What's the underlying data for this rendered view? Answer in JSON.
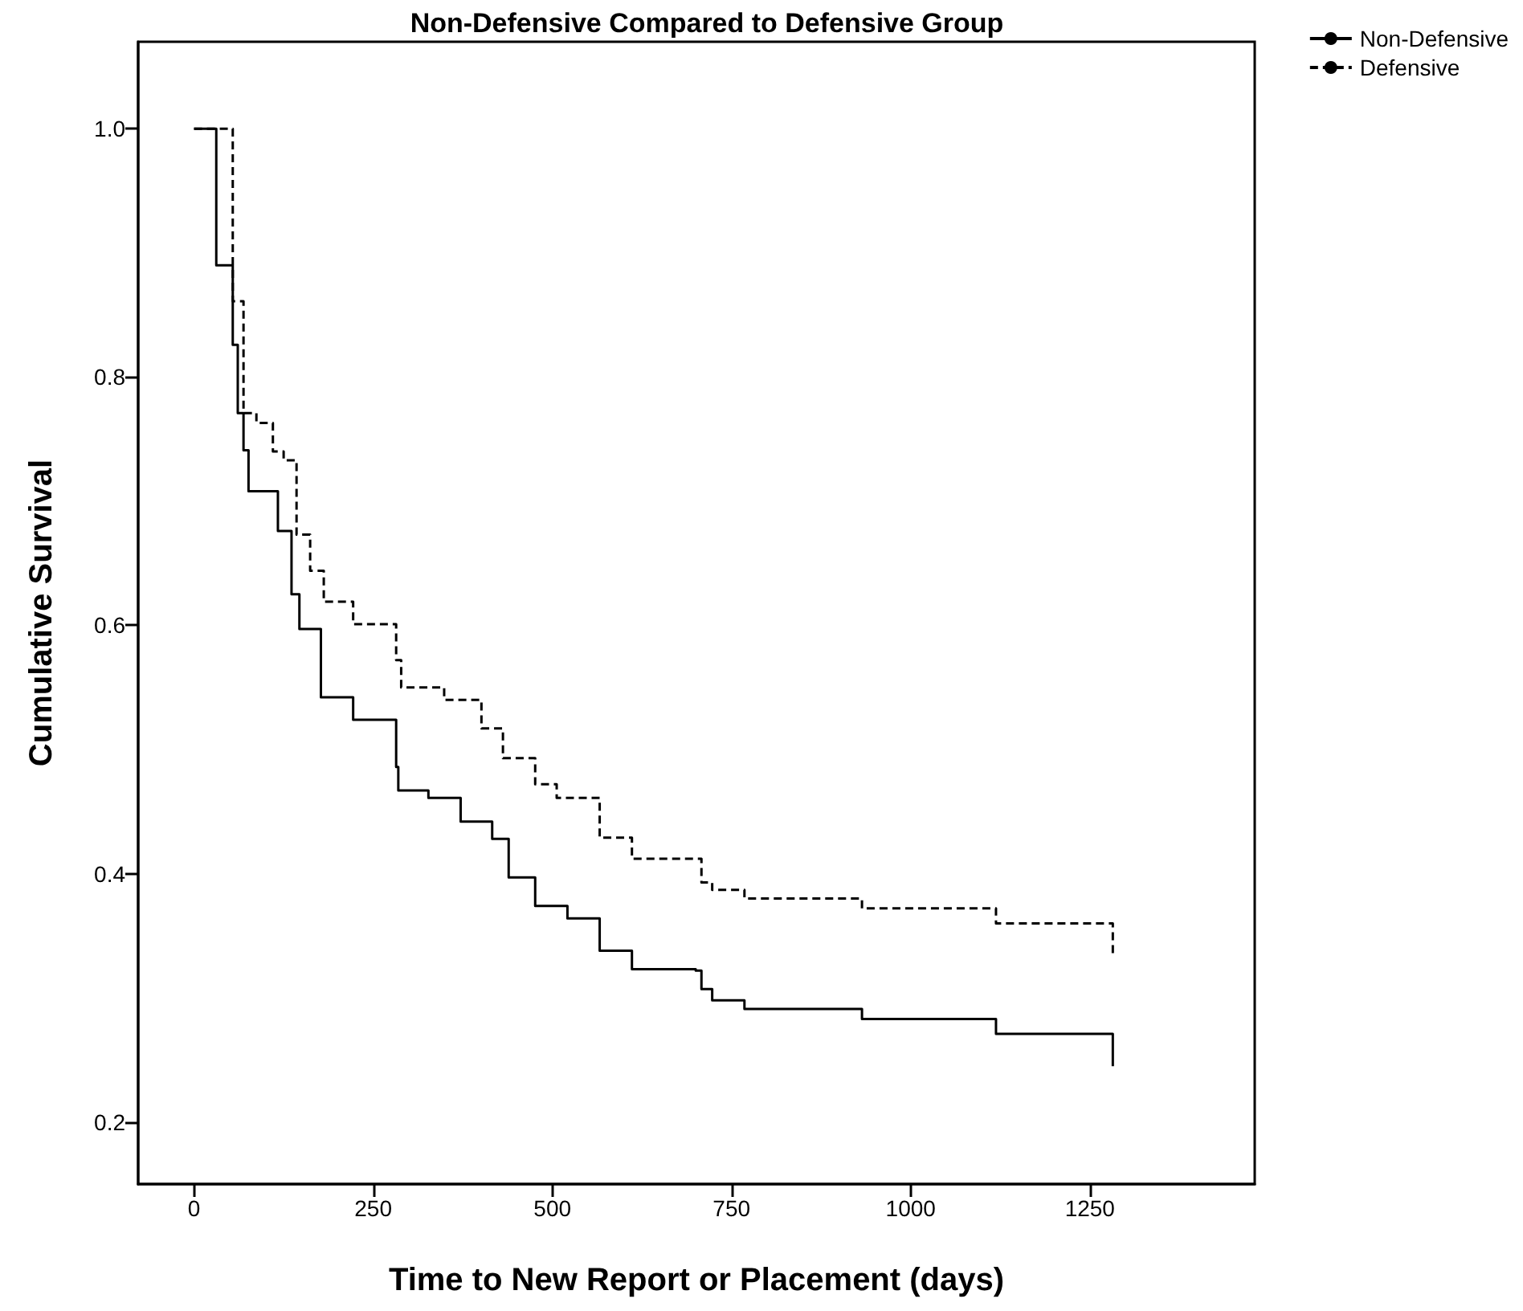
{
  "chart_data": {
    "type": "step",
    "title": "Non-Defensive Compared to Defensive Group",
    "xlabel": "Time to New Report or Placement (days)",
    "ylabel": "Cumulative Survival",
    "xlim": [
      -78,
      1480
    ],
    "xticks": [
      0,
      250,
      500,
      750,
      1000,
      1250
    ],
    "ylim": [
      0.15,
      1.07
    ],
    "yticks": [
      {
        "value": 0.2,
        "label": "0.2"
      },
      {
        "value": 0.4,
        "label": "0.4"
      },
      {
        "value": 0.6,
        "label": "0.6"
      },
      {
        "value": 0.8,
        "label": "0.8"
      },
      {
        "value": 1,
        "label": "1.0"
      }
    ],
    "grid": false,
    "legend": "top right",
    "marker": "none",
    "series": [
      {
        "name": "Non-Defensive",
        "color": "#000000",
        "line_style": "solid",
        "x": [
          0,
          31,
          54,
          61,
          69,
          76,
          117,
          136,
          147,
          177,
          222,
          282,
          285,
          327,
          372,
          416,
          439,
          476,
          521,
          566,
          611,
          700,
          708,
          723,
          768,
          932,
          1119,
          1282,
          1282
        ],
        "values": [
          1.0,
          0.89,
          0.826,
          0.771,
          0.741,
          0.708,
          0.676,
          0.625,
          0.597,
          0.542,
          0.524,
          0.486,
          0.467,
          0.461,
          0.442,
          0.428,
          0.397,
          0.374,
          0.364,
          0.338,
          0.323,
          0.322,
          0.307,
          0.298,
          0.291,
          0.283,
          0.271,
          0.271,
          0.245
        ]
      },
      {
        "name": "Defensive",
        "color": "#000000",
        "line_style": "dashed",
        "x": [
          0,
          54,
          69,
          87,
          110,
          125,
          143,
          162,
          181,
          222,
          282,
          289,
          349,
          401,
          431,
          476,
          506,
          566,
          611,
          708,
          723,
          768,
          932,
          1119,
          1282,
          1282
        ],
        "values": [
          1.0,
          0.861,
          0.771,
          0.763,
          0.74,
          0.733,
          0.673,
          0.644,
          0.619,
          0.601,
          0.572,
          0.55,
          0.54,
          0.517,
          0.493,
          0.472,
          0.461,
          0.429,
          0.412,
          0.393,
          0.387,
          0.38,
          0.372,
          0.36,
          0.36,
          0.333
        ]
      }
    ]
  }
}
